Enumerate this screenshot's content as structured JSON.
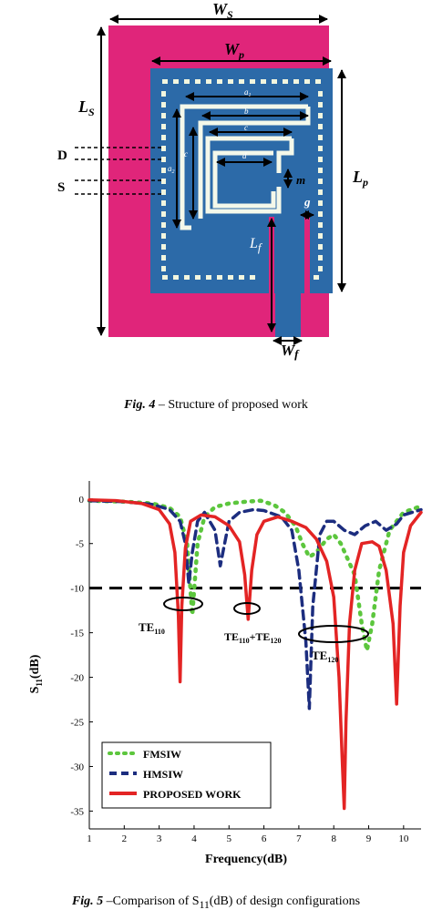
{
  "figure4": {
    "labels": {
      "ws": "W",
      "ws_sub": "S",
      "wp": "W",
      "wp_sub": "p",
      "ls": "L",
      "ls_sub": "S",
      "lp": "L",
      "lp_sub": "p",
      "lf": "L",
      "lf_sub": "f",
      "wf": "W",
      "wf_sub": "f",
      "d_label": "D",
      "s_label": "S",
      "m": "m",
      "g": "g",
      "a": "a",
      "a_sub": "1",
      "a2": "a",
      "a2_sub": "2",
      "b": "b",
      "c": "c",
      "c2": "c",
      "d": "d"
    },
    "colors": {
      "substrate": "#e0257a",
      "patch": "#2c6aa8",
      "slot": "#f4f8ea",
      "via": "#f2f6df",
      "arrow": "#000000"
    },
    "caption_prefix": "Fig. 4",
    "caption_text": " – Structure of proposed work"
  },
  "figure5": {
    "caption_prefix": "Fig. 5",
    "caption_text_a": " –Comparison of S",
    "caption_sub": "11",
    "caption_text_b": "(dB) of design configurations",
    "annotations": {
      "te110": "TE",
      "te110_sub": "110",
      "te110_120_a": "TE",
      "te110_120_a_sub": "110",
      "te110_120_plus": "+TE",
      "te110_120_b_sub": "120",
      "te120": "TE",
      "te120_sub": "120"
    },
    "ylabel_main": "S",
    "ylabel_sub": "11",
    "ylabel_unit": "(dB)"
  },
  "chart_data": {
    "type": "line",
    "title": "",
    "xlabel": "Frequency(dB)",
    "ylabel": "S11(dB)",
    "xlim": [
      1,
      10.5
    ],
    "ylim": [
      -37,
      1
    ],
    "xticks": [
      1,
      2,
      3,
      4,
      5,
      6,
      7,
      8,
      9,
      10
    ],
    "yticks": [
      0,
      -5,
      -10,
      -15,
      -20,
      -25,
      -30,
      -35
    ],
    "xtick_labels": [
      "1",
      "2",
      "3",
      "4",
      "5",
      "6",
      "7",
      "8",
      "9",
      "10"
    ],
    "ytick_labels": [
      "0",
      "-5",
      "-10",
      "-15",
      "-20",
      "-25",
      "-30",
      "-35"
    ],
    "reference_line": {
      "y": -10,
      "style": "dashed"
    },
    "legend_position": "bottom-left",
    "series": [
      {
        "name": "FMSIW",
        "style": "dotted",
        "color": "#5cc63d",
        "x": [
          1.0,
          2.0,
          2.8,
          3.3,
          3.6,
          3.8,
          3.95,
          4.1,
          4.3,
          4.6,
          5.0,
          5.5,
          5.9,
          6.0,
          6.3,
          6.6,
          6.9,
          7.1,
          7.3,
          7.5,
          7.8,
          8.0,
          8.2,
          8.6,
          8.8,
          8.95,
          9.1,
          9.3,
          9.6,
          10.0,
          10.5
        ],
        "y": [
          -0.2,
          -0.3,
          -0.5,
          -1.0,
          -2.0,
          -5.0,
          -13.0,
          -5.0,
          -2.0,
          -0.9,
          -0.5,
          -0.3,
          -0.2,
          -0.3,
          -0.7,
          -1.5,
          -3.0,
          -5.0,
          -6.5,
          -6.0,
          -4.5,
          -4.0,
          -5.0,
          -8.5,
          -14.0,
          -17.0,
          -14.0,
          -8.0,
          -3.5,
          -1.5,
          -0.8
        ]
      },
      {
        "name": "HMSIW",
        "style": "dashed",
        "color": "#1c2d7f",
        "x": [
          1.0,
          2.0,
          2.8,
          3.3,
          3.6,
          3.75,
          3.85,
          3.95,
          4.1,
          4.3,
          4.6,
          4.75,
          4.85,
          5.0,
          5.3,
          5.7,
          6.0,
          6.5,
          6.8,
          7.0,
          7.2,
          7.3,
          7.4,
          7.6,
          7.8,
          8.0,
          8.3,
          8.6,
          8.9,
          9.2,
          9.5,
          9.8,
          10.0,
          10.5
        ],
        "y": [
          -0.2,
          -0.3,
          -0.6,
          -1.2,
          -2.5,
          -5.0,
          -9.5,
          -6.0,
          -2.5,
          -1.5,
          -3.5,
          -7.5,
          -5.5,
          -2.5,
          -1.5,
          -1.2,
          -1.3,
          -2.0,
          -3.5,
          -8.0,
          -16.0,
          -23.5,
          -12.0,
          -4.0,
          -2.5,
          -2.5,
          -3.5,
          -4.0,
          -3.0,
          -2.5,
          -3.5,
          -2.8,
          -1.8,
          -1.2
        ]
      },
      {
        "name": "PROPOSED WORK",
        "style": "solid",
        "color": "#e32424",
        "x": [
          1.0,
          1.8,
          2.5,
          3.0,
          3.3,
          3.45,
          3.55,
          3.6,
          3.65,
          3.75,
          3.9,
          4.2,
          4.6,
          5.0,
          5.3,
          5.45,
          5.55,
          5.65,
          5.8,
          6.0,
          6.4,
          6.8,
          7.2,
          7.5,
          7.8,
          8.0,
          8.15,
          8.25,
          8.3,
          8.35,
          8.45,
          8.6,
          8.8,
          9.1,
          9.3,
          9.5,
          9.7,
          9.8,
          9.9,
          10.0,
          10.2,
          10.5
        ],
        "y": [
          -0.1,
          -0.2,
          -0.5,
          -1.2,
          -2.8,
          -6.0,
          -13.0,
          -20.5,
          -12.0,
          -5.5,
          -2.5,
          -1.8,
          -2.0,
          -3.0,
          -4.8,
          -8.5,
          -13.5,
          -8.0,
          -4.0,
          -2.5,
          -2.0,
          -2.5,
          -3.2,
          -4.5,
          -7.0,
          -11.0,
          -20.0,
          -30.0,
          -34.7,
          -25.0,
          -14.0,
          -8.0,
          -5.0,
          -4.8,
          -5.3,
          -8.0,
          -14.0,
          -23.0,
          -12.0,
          -6.0,
          -3.0,
          -1.5
        ]
      }
    ]
  }
}
